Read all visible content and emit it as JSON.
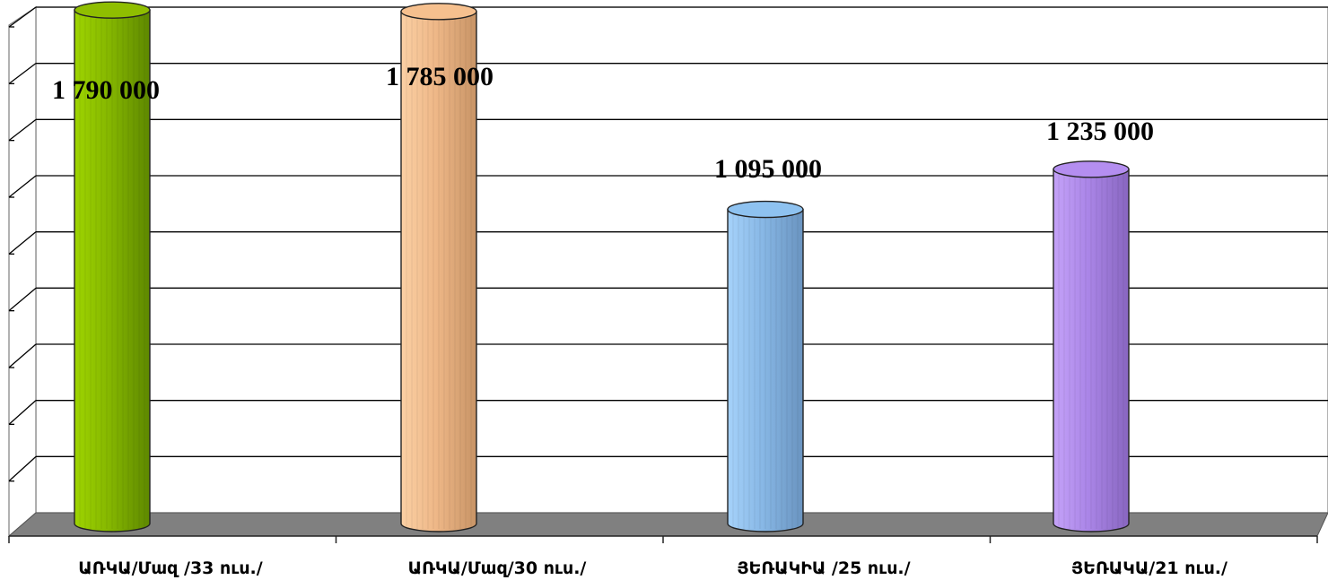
{
  "chart_data": {
    "type": "bar",
    "style": "3d-cylinder",
    "categories": [
      "ԱՌԿԱ/Մազ /33 ուս./",
      "ԱՌԿԱ/Մազ/30 ուս./",
      "ՅԵՌԱԿԻԱ /25 ուս./",
      "ՅԵՌԱԿԱ/21 ուս./"
    ],
    "values": [
      1790000,
      1785000,
      1095000,
      1235000
    ],
    "value_labels": [
      "1 790 000",
      "1 785 000",
      "1 095 000",
      "1 235 000"
    ],
    "colors": [
      "#8fbe00",
      "#f6c08e",
      "#8ec2f0",
      "#b48ef0"
    ],
    "ylim": [
      0,
      1800000
    ],
    "grid": true,
    "legend": "none"
  }
}
